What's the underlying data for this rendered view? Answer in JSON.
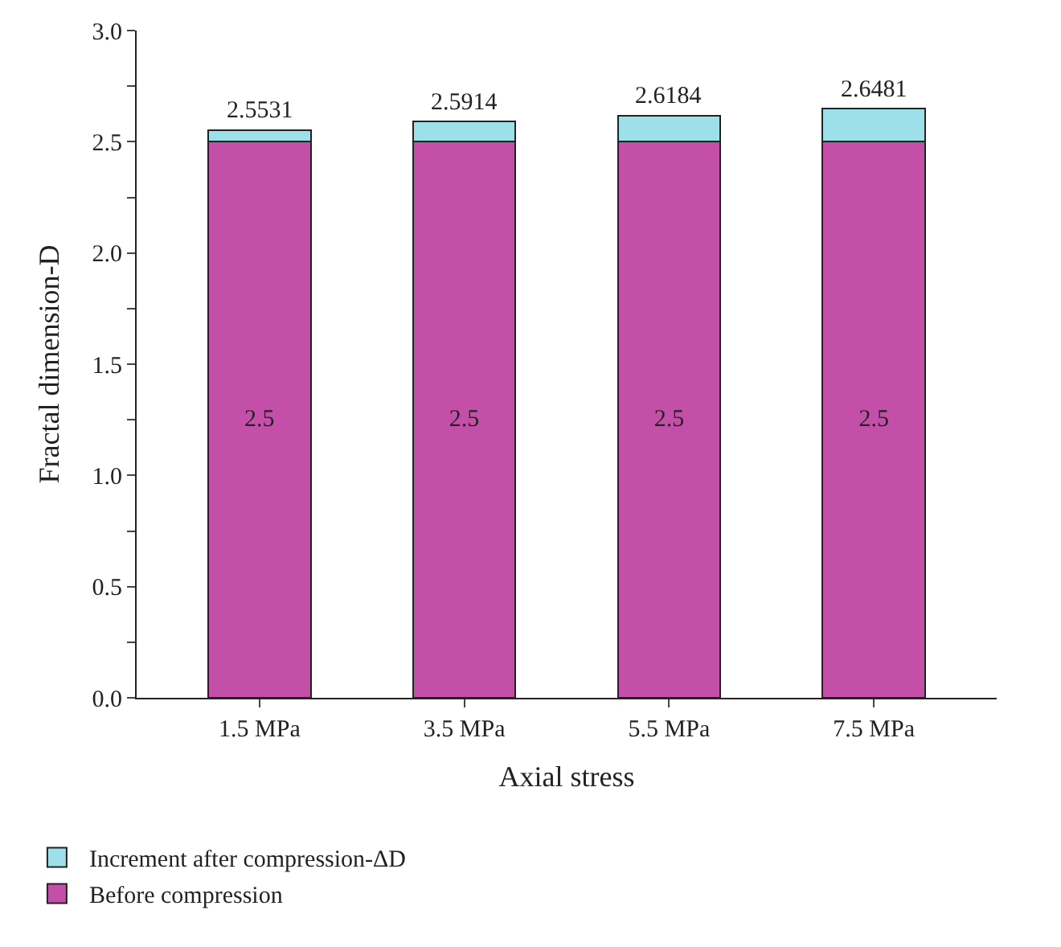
{
  "chart_data": {
    "type": "bar",
    "stacked": true,
    "xlabel": "Axial stress",
    "ylabel": "Fractal dimension-D",
    "categories": [
      "1.5 MPa",
      "3.5 MPa",
      "5.5 MPa",
      "7.5 MPa"
    ],
    "series": [
      {
        "name": "Before compression",
        "color": "#c44fa8",
        "values": [
          2.5,
          2.5,
          2.5,
          2.5
        ],
        "value_labels": [
          "2.5",
          "2.5",
          "2.5",
          "2.5"
        ]
      },
      {
        "name": "Increment after compression-ΔD",
        "color": "#9ee0ea",
        "values": [
          0.0531,
          0.0914,
          0.1184,
          0.1481
        ]
      }
    ],
    "totals": [
      "2.5531",
      "2.5914",
      "2.6184",
      "2.6481"
    ],
    "ylim": [
      0,
      3.0
    ],
    "yticks": [
      {
        "value": 0,
        "label": "0.0"
      },
      {
        "value": 0.25,
        "label": null
      },
      0.5,
      {
        "value": 0.75,
        "label": null
      },
      {
        "value": 1,
        "label": "1.0"
      },
      {
        "value": 1.25,
        "label": null
      },
      1.5,
      {
        "value": 1.75,
        "label": null
      },
      {
        "value": 2,
        "label": "2.0"
      },
      {
        "value": 2.25,
        "label": null
      },
      2.5,
      {
        "value": 2.75,
        "label": null
      },
      {
        "value": 3,
        "label": "3.0"
      }
    ],
    "legend": "bottom left"
  }
}
